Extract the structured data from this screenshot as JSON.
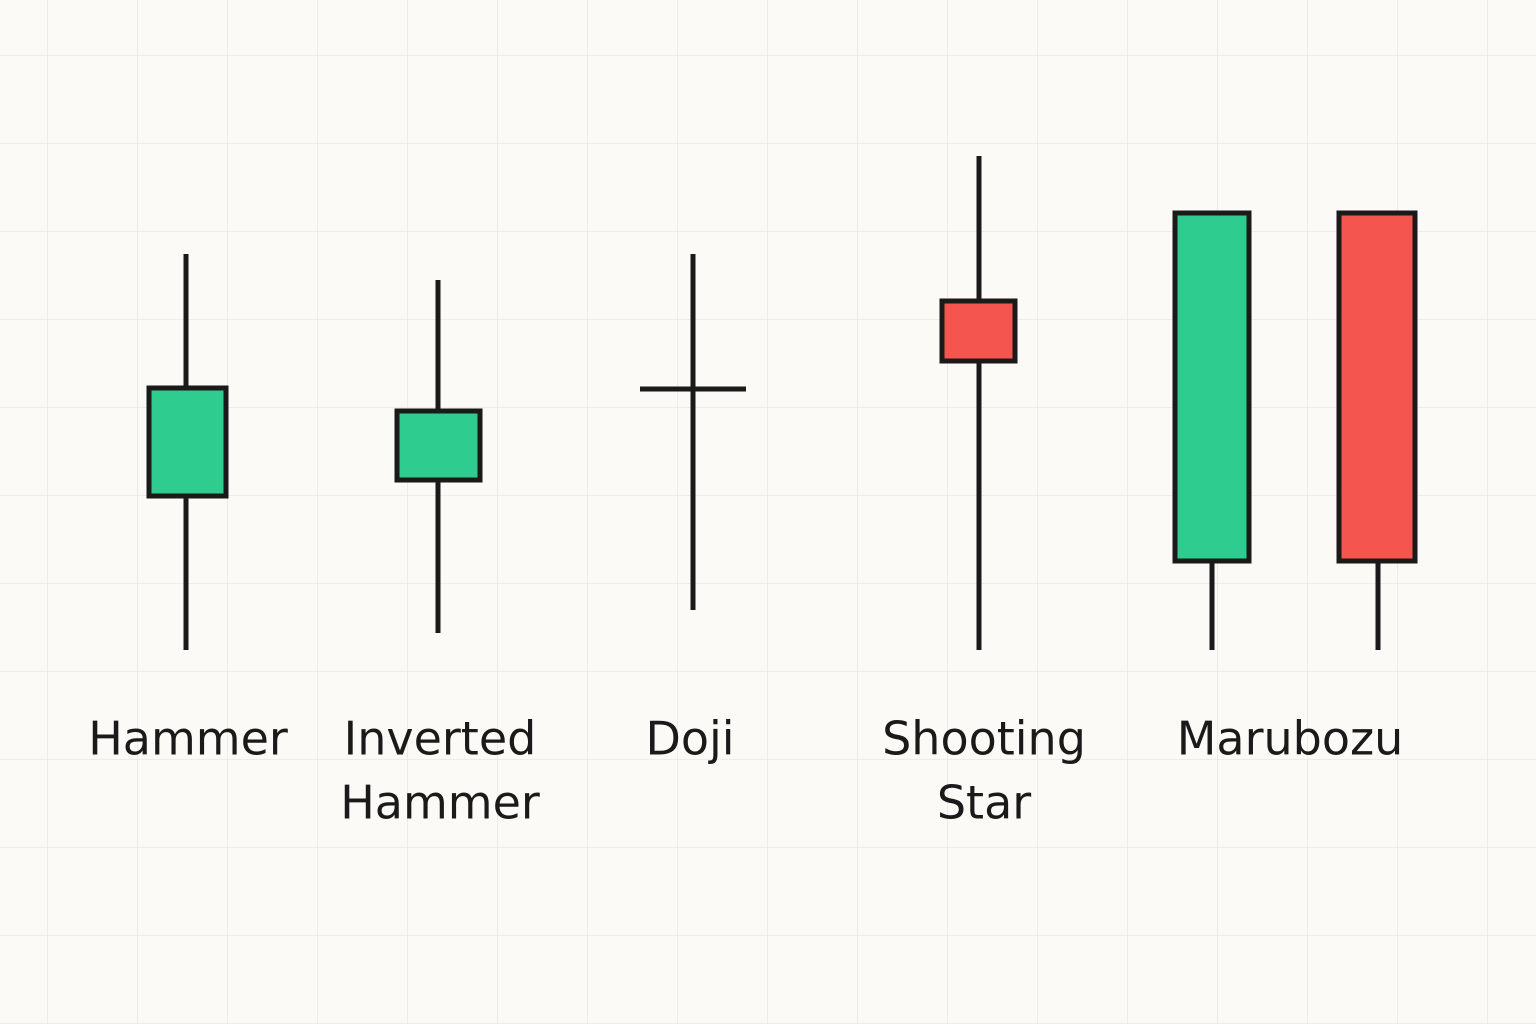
{
  "candles": [
    {
      "label_lines": [
        "Hammer"
      ]
    },
    {
      "label_lines": [
        "Inverted",
        "Hammer"
      ]
    },
    {
      "label_lines": [
        "Doji"
      ]
    },
    {
      "label_lines": [
        "Shooting",
        "Star"
      ]
    },
    {
      "label_lines": [
        "Marubozu"
      ]
    }
  ]
}
